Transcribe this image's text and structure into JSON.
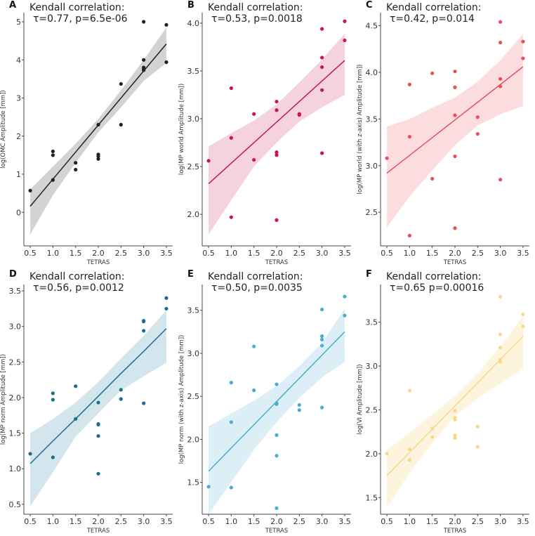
{
  "chart_data": [
    {
      "type": "scatter",
      "panel": "A",
      "color": "#222222",
      "band": "#d3d3d3",
      "annotation": [
        "Kendall correlation:",
        "τ=0.77, p=6.5e-06"
      ],
      "xlabel": "TETRAS",
      "ylabel": "log(OMC Amplitude [mm])",
      "xlim": [
        0.36,
        3.64
      ],
      "ylim": [
        -0.88,
        5.24
      ],
      "xticks": [
        "0.5",
        "1.0",
        "1.5",
        "2.0",
        "2.5",
        "3.0",
        "3.5"
      ],
      "yticks": [
        "0",
        "1",
        "2",
        "3",
        "4",
        "5"
      ],
      "points": [
        [
          0.5,
          0.57
        ],
        [
          1,
          1.6
        ],
        [
          1,
          1.5
        ],
        [
          1,
          0.85
        ],
        [
          1.5,
          1.3
        ],
        [
          1.5,
          1.12
        ],
        [
          2,
          2.3
        ],
        [
          2,
          1.52
        ],
        [
          2,
          1.47
        ],
        [
          2,
          1.4
        ],
        [
          2.5,
          3.37
        ],
        [
          2.5,
          2.3
        ],
        [
          3,
          5.0
        ],
        [
          3,
          4.0
        ],
        [
          3,
          3.8
        ],
        [
          3,
          3.75
        ],
        [
          3,
          3.73
        ],
        [
          3.5,
          4.92
        ],
        [
          3.5,
          3.94
        ]
      ],
      "fit_x": [
        0.5,
        1,
        1.5,
        2,
        2.5,
        3,
        3.5
      ],
      "fit_y": [
        0.16,
        0.87,
        1.58,
        2.29,
        3.0,
        3.71,
        4.42
      ],
      "ci_upper": [
        0.6,
        1.2,
        1.8,
        2.45,
        3.2,
        4.0,
        4.85
      ],
      "ci_lower": [
        -0.58,
        0.45,
        1.3,
        2.1,
        2.75,
        3.45,
        3.92
      ]
    },
    {
      "type": "scatter",
      "panel": "B",
      "color": "#c8174f",
      "band": "#f4d3de",
      "annotation": [
        "Kendall correlation:",
        "τ=0.53, p=0.0018"
      ],
      "xlabel": "TETRAS",
      "ylabel": "log(MP world Amplitude [mm])",
      "xlim": [
        0.36,
        3.64
      ],
      "ylim": [
        1.67,
        4.11
      ],
      "xticks": [
        "0.5",
        "1.0",
        "1.5",
        "2.0",
        "2.5",
        "3.0",
        "3.5"
      ],
      "yticks": [
        "2.0",
        "2.5",
        "3.0",
        "3.5",
        "4.0"
      ],
      "points": [
        [
          0.5,
          2.56
        ],
        [
          1,
          3.32
        ],
        [
          1,
          2.8
        ],
        [
          1,
          1.97
        ],
        [
          1.5,
          3.05
        ],
        [
          1.5,
          2.57
        ],
        [
          2,
          3.18
        ],
        [
          2,
          3.09
        ],
        [
          2,
          2.65
        ],
        [
          2,
          2.62
        ],
        [
          2,
          1.94
        ],
        [
          2.5,
          3.05
        ],
        [
          2.5,
          3.04
        ],
        [
          3,
          3.94
        ],
        [
          3,
          3.64
        ],
        [
          3,
          3.54
        ],
        [
          3,
          3.3
        ],
        [
          3,
          2.64
        ],
        [
          3.5,
          4.02
        ],
        [
          3.5,
          3.82
        ]
      ],
      "fit_x": [
        0.5,
        1,
        1.5,
        2,
        2.5,
        3,
        3.5
      ],
      "fit_y": [
        2.32,
        2.535,
        2.75,
        2.965,
        3.18,
        3.395,
        3.61
      ],
      "ci_upper": [
        2.71,
        2.85,
        2.98,
        3.15,
        3.38,
        3.62,
        3.89
      ],
      "ci_lower": [
        1.79,
        2.15,
        2.5,
        2.75,
        2.97,
        3.12,
        3.25
      ]
    },
    {
      "type": "scatter",
      "panel": "C",
      "color": "#e8505b",
      "band": "#fbdcdf",
      "annotation": [
        "Kendall correlation:",
        "τ=0.42, p=0.014"
      ],
      "xlabel": "TETRAS",
      "ylabel": "log(MP world (with z-axis) Amplitude [mm])",
      "xlim": [
        0.36,
        3.64
      ],
      "ylim": [
        2.14,
        4.64
      ],
      "xticks": [
        "0.5",
        "1.0",
        "1.5",
        "2.0",
        "2.5",
        "3.0",
        "3.5"
      ],
      "yticks": [
        "2.5",
        "3.0",
        "3.5",
        "4.0",
        "4.5"
      ],
      "points": [
        [
          0.5,
          3.08
        ],
        [
          1,
          3.87
        ],
        [
          1,
          3.31
        ],
        [
          1,
          2.25
        ],
        [
          1.5,
          3.99
        ],
        [
          1.5,
          2.86
        ],
        [
          2,
          4.01
        ],
        [
          2,
          3.84
        ],
        [
          2,
          3.54
        ],
        [
          2,
          3.1
        ],
        [
          2,
          2.33
        ],
        [
          2.5,
          3.52
        ],
        [
          2.5,
          3.34
        ],
        [
          3,
          4.54
        ],
        [
          3,
          4.32
        ],
        [
          3,
          3.93
        ],
        [
          3,
          3.85
        ],
        [
          3,
          2.85
        ],
        [
          3.5,
          4.33
        ],
        [
          3.5,
          4.15
        ]
      ],
      "fit_x": [
        0.5,
        1,
        1.5,
        2,
        2.5,
        3,
        3.5
      ],
      "fit_y": [
        2.92,
        3.11,
        3.3,
        3.49,
        3.68,
        3.87,
        4.06
      ],
      "ci_upper": [
        3.42,
        3.5,
        3.62,
        3.73,
        3.9,
        4.13,
        4.41
      ],
      "ci_lower": [
        2.34,
        2.67,
        2.95,
        3.22,
        3.43,
        3.55,
        3.64
      ]
    },
    {
      "type": "scatter",
      "panel": "D",
      "color": "#1a6f8e",
      "band": "#d4e6ed",
      "annotation": [
        "Kendall correlation:",
        "τ=0.56, p=0.0012"
      ],
      "xlabel": "TETRAS",
      "ylabel": "log(MP norm Amplitude [mm])",
      "xlim": [
        0.36,
        3.64
      ],
      "ylim": [
        0.36,
        3.59
      ],
      "xticks": [
        "0.5",
        "1.0",
        "1.5",
        "2.0",
        "2.5",
        "3.0",
        "3.5"
      ],
      "yticks": [
        "0.5",
        "1.0",
        "1.5",
        "2.0",
        "2.5",
        "3.0",
        "3.5"
      ],
      "points": [
        [
          0.5,
          1.21
        ],
        [
          1,
          2.06
        ],
        [
          1,
          1.97
        ],
        [
          1,
          1.16
        ],
        [
          1.5,
          2.16
        ],
        [
          1.5,
          1.7
        ],
        [
          2,
          1.93
        ],
        [
          2,
          1.63
        ],
        [
          2,
          1.62
        ],
        [
          2,
          1.46
        ],
        [
          2,
          0.93
        ],
        [
          2.5,
          2.11
        ],
        [
          2.5,
          1.98
        ],
        [
          3,
          3.08
        ],
        [
          3,
          3.07
        ],
        [
          3,
          2.94
        ],
        [
          3,
          1.92
        ],
        [
          3.5,
          3.4
        ],
        [
          3.5,
          3.25
        ]
      ],
      "fit_x": [
        0.5,
        1,
        1.5,
        2,
        2.5,
        3,
        3.5
      ],
      "fit_y": [
        1.07,
        1.39,
        1.7,
        2.02,
        2.34,
        2.65,
        2.97
      ],
      "ci_upper": [
        1.5,
        1.7,
        1.93,
        2.22,
        2.55,
        2.87,
        3.23
      ],
      "ci_lower": [
        0.47,
        0.95,
        1.45,
        1.78,
        2.1,
        2.3,
        2.49
      ]
    },
    {
      "type": "scatter",
      "panel": "E",
      "color": "#4aaccf",
      "band": "#ddeff6",
      "annotation": [
        "Kendall correlation:",
        "τ=0.50, p=0.0035"
      ],
      "xlabel": "TETRAS",
      "ylabel": "log(MP norm (with z-axis) Amplitude [mm])",
      "xlim": [
        0.36,
        3.64
      ],
      "ylim": [
        1.13,
        3.8
      ],
      "xticks": [
        "0.5",
        "1.0",
        "1.5",
        "2.0",
        "2.5",
        "3.0",
        "3.5"
      ],
      "yticks": [
        "1.5",
        "2.0",
        "2.5",
        "3.0",
        "3.5"
      ],
      "points": [
        [
          0.5,
          1.45
        ],
        [
          1,
          2.66
        ],
        [
          1,
          2.2
        ],
        [
          1,
          1.44
        ],
        [
          1.5,
          3.08
        ],
        [
          1.5,
          2.57
        ],
        [
          2,
          2.64
        ],
        [
          2,
          2.42
        ],
        [
          2,
          2.41
        ],
        [
          2,
          2.05
        ],
        [
          2,
          1.81
        ],
        [
          2,
          1.2
        ],
        [
          2.5,
          2.4
        ],
        [
          2.5,
          2.34
        ],
        [
          3,
          3.51
        ],
        [
          3,
          3.2
        ],
        [
          3,
          3.16
        ],
        [
          3,
          3.09
        ],
        [
          3,
          2.37
        ],
        [
          3.5,
          3.66
        ],
        [
          3.5,
          3.44
        ]
      ],
      "fit_x": [
        0.5,
        1,
        1.5,
        2,
        2.5,
        3,
        3.5
      ],
      "fit_y": [
        1.63,
        1.9,
        2.17,
        2.44,
        2.71,
        2.98,
        3.25
      ],
      "ci_upper": [
        2.15,
        2.3,
        2.45,
        2.62,
        2.85,
        3.12,
        3.52
      ],
      "ci_lower": [
        1.13,
        1.5,
        1.88,
        2.2,
        2.48,
        2.72,
        2.9
      ]
    },
    {
      "type": "scatter",
      "panel": "F",
      "color": "#f7d98a",
      "band": "#fdf4de",
      "annotation": [
        "Kendall correlation:",
        "τ=0.65 p=0.00016"
      ],
      "xlabel": "TETRAS",
      "ylabel": "log(VI Amplitude [mm])",
      "xlim": [
        0.36,
        3.64
      ],
      "ylim": [
        1.31,
        3.93
      ],
      "xticks": [
        "0.5",
        "1.0",
        "1.5",
        "2.0",
        "2.5",
        "3.0",
        "3.5"
      ],
      "yticks": [
        "1.5",
        "2.0",
        "2.5",
        "3.0",
        "3.5"
      ],
      "points": [
        [
          0.5,
          2.0
        ],
        [
          1,
          2.72
        ],
        [
          1,
          2.05
        ],
        [
          1,
          1.93
        ],
        [
          1.5,
          2.29
        ],
        [
          1.5,
          2.19
        ],
        [
          2,
          2.49
        ],
        [
          2,
          2.41
        ],
        [
          2,
          2.39
        ],
        [
          2,
          2.21
        ],
        [
          2,
          2.18
        ],
        [
          2.5,
          2.31
        ],
        [
          2.5,
          2.08
        ],
        [
          3,
          3.79
        ],
        [
          3,
          3.36
        ],
        [
          3,
          3.21
        ],
        [
          3,
          3.07
        ],
        [
          3,
          3.05
        ],
        [
          3.5,
          3.59
        ],
        [
          3.5,
          3.45
        ]
      ],
      "fit_x": [
        0.5,
        1,
        1.5,
        2,
        2.5,
        3,
        3.5
      ],
      "fit_y": [
        1.75,
        2.015,
        2.28,
        2.545,
        2.81,
        3.075,
        3.34
      ],
      "ci_upper": [
        2.04,
        2.24,
        2.45,
        2.66,
        2.92,
        3.22,
        3.57
      ],
      "ci_lower": [
        1.39,
        1.78,
        2.12,
        2.43,
        2.63,
        2.8,
        2.97
      ]
    }
  ]
}
